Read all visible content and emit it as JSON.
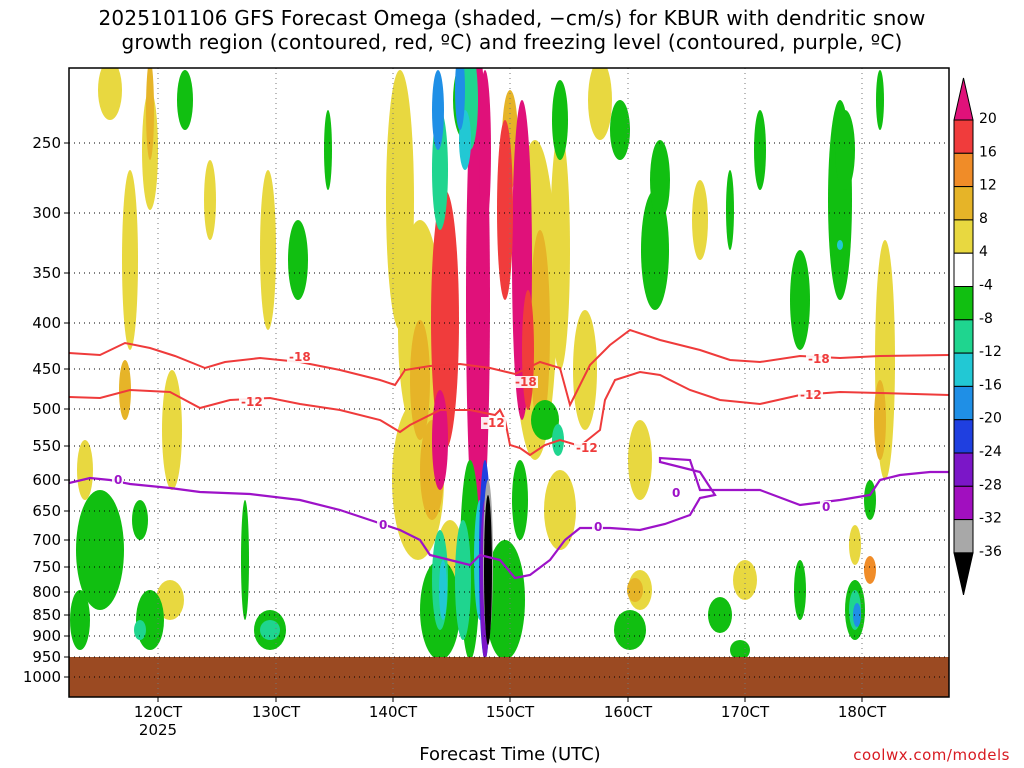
{
  "title": "2025101106 GFS Forecast Omega (shaded, −cm/s) for KBUR with dendritic snow\ngrowth region (contoured, red, ºC) and freezing level (contoured, purple, ºC)",
  "xlabel": "Forecast Time (UTC)",
  "credit": "coolwx.com/models",
  "chart_data": {
    "type": "heatmap",
    "y_scale": "pressure (reversed, log-like)",
    "y_ticks": [
      "250",
      "300",
      "350",
      "400",
      "450",
      "500",
      "550",
      "600",
      "650",
      "700",
      "750",
      "800",
      "850",
      "900",
      "950",
      "1000"
    ],
    "x_ticks": [
      "120CT",
      "130CT",
      "140CT",
      "150CT",
      "160CT",
      "170CT",
      "180CT"
    ],
    "x_subtick_label": "2025",
    "grid": "dotted",
    "colorbar": {
      "levels": [
        "20",
        "16",
        "12",
        "8",
        "4",
        "-4",
        "-8",
        "-12",
        "-16",
        "-20",
        "-24",
        "-28",
        "-32",
        "-36"
      ],
      "colors": [
        "#e0117a",
        "#f03c3c",
        "#f08c28",
        "#e6b428",
        "#e8d840",
        "#ffffff",
        "#11bf11",
        "#1fd58f",
        "#22c8d4",
        "#1f8fe6",
        "#1f3fe0",
        "#7b16c8",
        "#a10fbf",
        "#a8a8a8",
        "#000000"
      ]
    },
    "contours": [
      {
        "label": "-18",
        "color": "#ef3b3b"
      },
      {
        "label": "-12",
        "color": "#ef3b3b"
      },
      {
        "label": "0",
        "color": "#9d12c8"
      }
    ],
    "ground_color": "#9b4a22"
  }
}
